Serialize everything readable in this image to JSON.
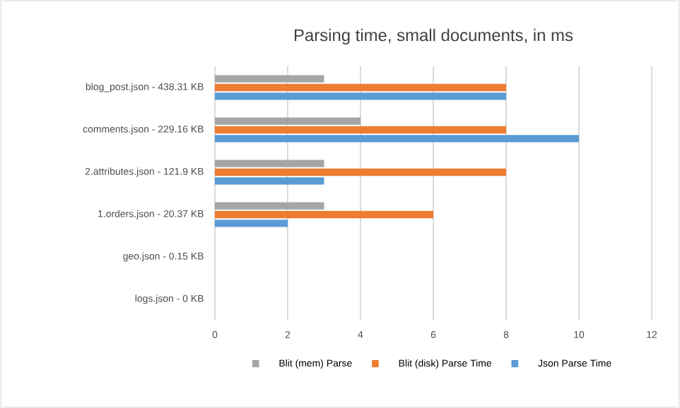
{
  "chart_data": {
    "type": "bar",
    "orientation": "horizontal",
    "title": "Parsing time, small documents, in ms",
    "categories": [
      "blog_post.json - 438.31 KB",
      "comments.json - 229.16 KB",
      "2.attributes.json - 121.9 KB",
      "1.orders.json - 20.37 KB",
      "geo.json - 0.15 KB",
      "logs.json - 0 KB"
    ],
    "series": [
      {
        "name": "Blit (mem) Parse",
        "color": "#a5a5a5",
        "values": [
          3,
          4,
          3,
          3,
          0,
          0
        ]
      },
      {
        "name": "Blit (disk) Parse Time",
        "color": "#ed7d31",
        "values": [
          8,
          8,
          8,
          6,
          0,
          0
        ]
      },
      {
        "name": "Json Parse Time",
        "color": "#5b9bd5",
        "values": [
          8,
          10,
          3,
          2,
          0,
          0
        ]
      }
    ],
    "xlim": [
      0,
      12
    ],
    "xticks": [
      0,
      2,
      4,
      6,
      8,
      10,
      12
    ],
    "grid": "x",
    "legend": "bottom"
  }
}
